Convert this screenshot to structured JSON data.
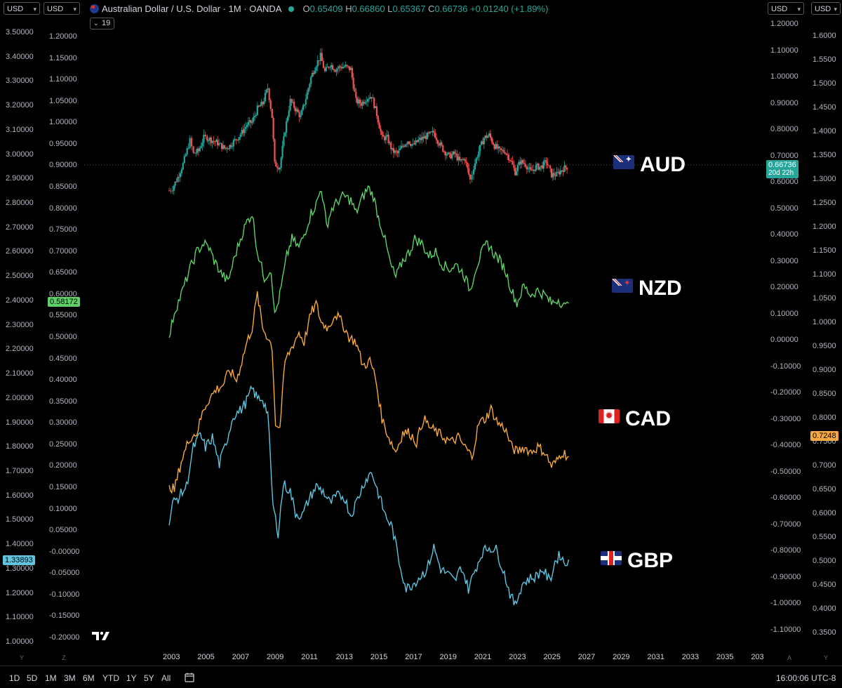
{
  "header": {
    "currency_selectors": [
      "USD",
      "USD",
      "USD",
      "USD"
    ],
    "symbol_title": "Australian Dollar / U.S. Dollar · 1M · OANDA",
    "ohlc": [
      {
        "k": "O",
        "v": "0.65409"
      },
      {
        "k": "H",
        "v": "0.66860"
      },
      {
        "k": "L",
        "v": "0.65367"
      },
      {
        "k": "C",
        "v": "0.66736"
      }
    ],
    "change": "+0.01240 (+1.89%)",
    "indicator_count": "19",
    "colors": {
      "up": "#26a69a",
      "down": "#ef5350"
    }
  },
  "bottom_bar": {
    "timeframes": [
      "1D",
      "5D",
      "1M",
      "3M",
      "6M",
      "YTD",
      "1Y",
      "5Y",
      "All"
    ],
    "clock": "16:00:06 UTC-8",
    "corner_labels": [
      "Y",
      "Z",
      "A",
      "Y"
    ],
    "icons": [
      "date-range-icon",
      "tradingview-logo-icon"
    ]
  },
  "chart_data": {
    "type": "line",
    "title": "Australian Dollar / U.S. Dollar · 1M · OANDA",
    "x_axis": {
      "ticks": [
        "2003",
        "2005",
        "2007",
        "2009",
        "2011",
        "2013",
        "2015",
        "2017",
        "2019",
        "2021",
        "2023",
        "2025",
        "2027",
        "2029",
        "2031",
        "2033",
        "2035",
        "203"
      ],
      "range": [
        2002,
        2036
      ]
    },
    "y_axes": [
      {
        "position": "far-left",
        "ticks": [
          "3.50000",
          "3.40000",
          "3.30000",
          "3.20000",
          "3.10000",
          "3.00000",
          "2.90000",
          "2.80000",
          "2.70000",
          "2.60000",
          "2.50000",
          "2.40000",
          "2.30000",
          "2.20000",
          "2.10000",
          "2.00000",
          "1.90000",
          "1.80000",
          "1.70000",
          "1.60000",
          "1.50000",
          "1.40000",
          "1.30000",
          "1.20000",
          "1.10000",
          "1.00000"
        ],
        "range": [
          1.0,
          3.5
        ],
        "last_value": "1.33893",
        "last_value_color": "#5fc4e0"
      },
      {
        "position": "left",
        "ticks": [
          "1.20000",
          "1.15000",
          "1.10000",
          "1.05000",
          "1.00000",
          "0.95000",
          "0.90000",
          "0.85000",
          "0.80000",
          "0.75000",
          "0.70000",
          "0.65000",
          "0.60000",
          "0.55000",
          "0.50000",
          "0.45000",
          "0.40000",
          "0.35000",
          "0.30000",
          "0.25000",
          "0.20000",
          "0.15000",
          "0.10000",
          "0.05000",
          "-0.00000",
          "-0.05000",
          "-0.10000",
          "-0.15000",
          "-0.20000"
        ],
        "range": [
          -0.2,
          1.2
        ],
        "last_value": "0.58172",
        "last_value_color": "#5fd068"
      },
      {
        "position": "right",
        "ticks": [
          "1.20000",
          "1.10000",
          "1.00000",
          "0.90000",
          "0.80000",
          "0.70000",
          "0.60000",
          "0.50000",
          "0.40000",
          "0.30000",
          "0.20000",
          "0.10000",
          "0.00000",
          "-0.10000",
          "-0.20000",
          "-0.30000",
          "-0.40000",
          "-0.50000",
          "-0.60000",
          "-0.70000",
          "-0.80000",
          "-0.90000",
          "-1.00000",
          "-1.10000"
        ],
        "range": [
          -1.1,
          1.2
        ],
        "last_value": "0.66736",
        "last_value_sub": "20d 22h",
        "last_value_color": "#26a69a"
      },
      {
        "position": "far-right",
        "ticks": [
          "1.6000",
          "1.5500",
          "1.5000",
          "1.4500",
          "1.4000",
          "1.3500",
          "1.3000",
          "1.2500",
          "1.2000",
          "1.1500",
          "1.1000",
          "1.0500",
          "1.0000",
          "0.9500",
          "0.9000",
          "0.8500",
          "0.8000",
          "0.7500",
          "0.7000",
          "0.6500",
          "0.6000",
          "0.5500",
          "0.5000",
          "0.4500",
          "0.4000",
          "0.3500"
        ],
        "range": [
          0.35,
          1.6
        ],
        "last_value": "0.7248",
        "last_value_color": "#f5a742"
      }
    ],
    "series": [
      {
        "name": "AUD",
        "style": "candles",
        "axis": "right",
        "flag": "au-flag-icon",
        "x": [
          2002.8,
          2003.0,
          2003.3,
          2003.6,
          2004.0,
          2004.2,
          2004.5,
          2004.8,
          2005.0,
          2005.3,
          2005.6,
          2006.0,
          2006.3,
          2006.6,
          2007.0,
          2007.3,
          2007.6,
          2007.9,
          2008.2,
          2008.5,
          2008.75,
          2008.9,
          2009.2,
          2009.5,
          2009.8,
          2010.1,
          2010.4,
          2010.7,
          2011.0,
          2011.3,
          2011.55,
          2011.8,
          2012.1,
          2012.4,
          2012.7,
          2013.0,
          2013.3,
          2013.6,
          2013.9,
          2014.2,
          2014.5,
          2014.8,
          2015.1,
          2015.4,
          2015.7,
          2016.0,
          2016.3,
          2016.6,
          2016.9,
          2017.2,
          2017.5,
          2017.8,
          2018.1,
          2018.4,
          2018.7,
          2019.0,
          2019.3,
          2019.6,
          2019.9,
          2020.2,
          2020.4,
          2020.7,
          2021.0,
          2021.3,
          2021.6,
          2021.9,
          2022.2,
          2022.5,
          2022.8,
          2023.1,
          2023.4,
          2023.7,
          2024.0,
          2024.3,
          2024.6,
          2024.9,
          2025.2,
          2025.5,
          2025.8
        ],
        "values": [
          0.57,
          0.58,
          0.62,
          0.67,
          0.76,
          0.71,
          0.72,
          0.77,
          0.77,
          0.76,
          0.75,
          0.73,
          0.74,
          0.76,
          0.79,
          0.82,
          0.83,
          0.88,
          0.9,
          0.96,
          0.85,
          0.67,
          0.66,
          0.8,
          0.91,
          0.88,
          0.85,
          0.92,
          1.0,
          1.05,
          1.08,
          1.02,
          1.05,
          1.03,
          1.04,
          1.04,
          1.03,
          0.91,
          0.9,
          0.92,
          0.93,
          0.86,
          0.77,
          0.77,
          0.72,
          0.71,
          0.74,
          0.76,
          0.74,
          0.76,
          0.77,
          0.78,
          0.79,
          0.75,
          0.72,
          0.7,
          0.71,
          0.68,
          0.69,
          0.61,
          0.66,
          0.72,
          0.77,
          0.78,
          0.74,
          0.72,
          0.72,
          0.69,
          0.64,
          0.68,
          0.67,
          0.64,
          0.66,
          0.66,
          0.68,
          0.63,
          0.63,
          0.65,
          0.66
        ]
      },
      {
        "name": "NZD",
        "style": "line",
        "color": "#5fd068",
        "axis": "left",
        "flag": "nz-flag-icon",
        "x": [
          2002.8,
          2003.1,
          2003.5,
          2004.0,
          2004.4,
          2004.8,
          2005.1,
          2005.4,
          2005.8,
          2006.2,
          2006.6,
          2007.0,
          2007.3,
          2007.6,
          2007.9,
          2008.3,
          2008.7,
          2008.9,
          2009.2,
          2009.6,
          2009.9,
          2010.3,
          2010.6,
          2011.0,
          2011.3,
          2011.6,
          2011.9,
          2012.2,
          2012.6,
          2012.9,
          2013.3,
          2013.6,
          2013.9,
          2014.3,
          2014.6,
          2014.9,
          2015.2,
          2015.6,
          2015.9,
          2016.3,
          2016.7,
          2017.0,
          2017.4,
          2017.8,
          2018.2,
          2018.6,
          2019.0,
          2019.4,
          2019.8,
          2020.2,
          2020.5,
          2020.9,
          2021.2,
          2021.5,
          2021.9,
          2022.2,
          2022.6,
          2022.9,
          2023.3,
          2023.7,
          2024.1,
          2024.5,
          2024.9,
          2025.3,
          2025.7,
          2025.9
        ],
        "values": [
          0.5,
          0.56,
          0.6,
          0.66,
          0.7,
          0.72,
          0.71,
          0.68,
          0.65,
          0.63,
          0.69,
          0.74,
          0.77,
          0.79,
          0.7,
          0.64,
          0.66,
          0.55,
          0.6,
          0.69,
          0.73,
          0.71,
          0.74,
          0.79,
          0.81,
          0.85,
          0.76,
          0.8,
          0.82,
          0.83,
          0.82,
          0.79,
          0.82,
          0.85,
          0.83,
          0.78,
          0.74,
          0.67,
          0.64,
          0.68,
          0.7,
          0.73,
          0.72,
          0.69,
          0.7,
          0.67,
          0.66,
          0.67,
          0.65,
          0.61,
          0.66,
          0.7,
          0.72,
          0.7,
          0.68,
          0.66,
          0.61,
          0.58,
          0.62,
          0.6,
          0.61,
          0.6,
          0.58,
          0.59,
          0.57,
          0.58
        ]
      },
      {
        "name": "CAD",
        "style": "line",
        "color": "#f5a742",
        "axis": "far-right",
        "flag": "ca-flag-icon",
        "x": [
          2002.8,
          2003.1,
          2003.5,
          2004.0,
          2004.4,
          2004.8,
          2005.1,
          2005.5,
          2005.9,
          2006.3,
          2006.7,
          2007.0,
          2007.3,
          2007.6,
          2007.9,
          2008.2,
          2008.5,
          2008.75,
          2008.95,
          2009.2,
          2009.5,
          2009.9,
          2010.3,
          2010.6,
          2011.0,
          2011.3,
          2011.6,
          2012.0,
          2012.4,
          2012.8,
          2013.2,
          2013.6,
          2014.0,
          2014.4,
          2014.7,
          2015.1,
          2015.5,
          2015.9,
          2016.3,
          2016.7,
          2017.1,
          2017.5,
          2017.9,
          2018.3,
          2018.7,
          2019.1,
          2019.5,
          2019.9,
          2020.3,
          2020.7,
          2021.1,
          2021.4,
          2021.8,
          2022.2,
          2022.6,
          2022.9,
          2023.3,
          2023.7,
          2024.1,
          2024.5,
          2024.9,
          2025.2,
          2025.5,
          2025.9
        ],
        "values": [
          0.66,
          0.65,
          0.71,
          0.76,
          0.77,
          0.82,
          0.84,
          0.86,
          0.87,
          0.9,
          0.88,
          0.92,
          0.96,
          0.99,
          1.06,
          0.99,
          0.97,
          0.95,
          0.79,
          0.78,
          0.92,
          0.95,
          0.98,
          0.96,
          1.02,
          1.04,
          1.0,
          0.99,
          1.02,
          1.0,
          0.97,
          0.96,
          0.91,
          0.92,
          0.89,
          0.8,
          0.76,
          0.73,
          0.77,
          0.77,
          0.75,
          0.8,
          0.78,
          0.77,
          0.76,
          0.75,
          0.76,
          0.74,
          0.72,
          0.79,
          0.8,
          0.82,
          0.79,
          0.78,
          0.74,
          0.73,
          0.74,
          0.73,
          0.74,
          0.73,
          0.7,
          0.71,
          0.73,
          0.72
        ]
      },
      {
        "name": "GBP",
        "style": "line",
        "color": "#5fc4e0",
        "axis": "far-left",
        "flag": "gb-flag-icon",
        "x": [
          2002.8,
          2003.0,
          2003.4,
          2003.8,
          2004.2,
          2004.6,
          2004.9,
          2005.3,
          2005.7,
          2006.1,
          2006.5,
          2006.9,
          2007.2,
          2007.6,
          2007.9,
          2008.2,
          2008.5,
          2008.8,
          2009.1,
          2009.4,
          2009.8,
          2010.1,
          2010.5,
          2010.9,
          2011.3,
          2011.7,
          2012.1,
          2012.5,
          2012.9,
          2013.3,
          2013.7,
          2014.1,
          2014.5,
          2014.9,
          2015.3,
          2015.7,
          2016.1,
          2016.5,
          2016.9,
          2017.3,
          2017.7,
          2018.1,
          2018.5,
          2018.9,
          2019.3,
          2019.7,
          2020.1,
          2020.5,
          2020.9,
          2021.3,
          2021.7,
          2022.1,
          2022.5,
          2022.8,
          2023.2,
          2023.6,
          2024.0,
          2024.4,
          2024.8,
          2025.1,
          2025.4,
          2025.7,
          2025.9
        ],
        "values": [
          1.48,
          1.57,
          1.6,
          1.64,
          1.8,
          1.85,
          1.8,
          1.84,
          1.73,
          1.82,
          1.93,
          1.95,
          1.98,
          2.04,
          2.0,
          2.0,
          1.94,
          1.56,
          1.45,
          1.65,
          1.62,
          1.53,
          1.52,
          1.59,
          1.64,
          1.62,
          1.57,
          1.6,
          1.6,
          1.52,
          1.59,
          1.66,
          1.7,
          1.61,
          1.52,
          1.47,
          1.33,
          1.22,
          1.24,
          1.27,
          1.3,
          1.39,
          1.3,
          1.28,
          1.25,
          1.31,
          1.22,
          1.3,
          1.37,
          1.39,
          1.38,
          1.3,
          1.2,
          1.15,
          1.24,
          1.26,
          1.27,
          1.3,
          1.25,
          1.33,
          1.36,
          1.32,
          1.34
        ]
      }
    ],
    "reference_line": {
      "value": 0.66736,
      "axis": "right",
      "style": "dotted"
    },
    "grid": false,
    "legend": "labels at right of each series"
  }
}
